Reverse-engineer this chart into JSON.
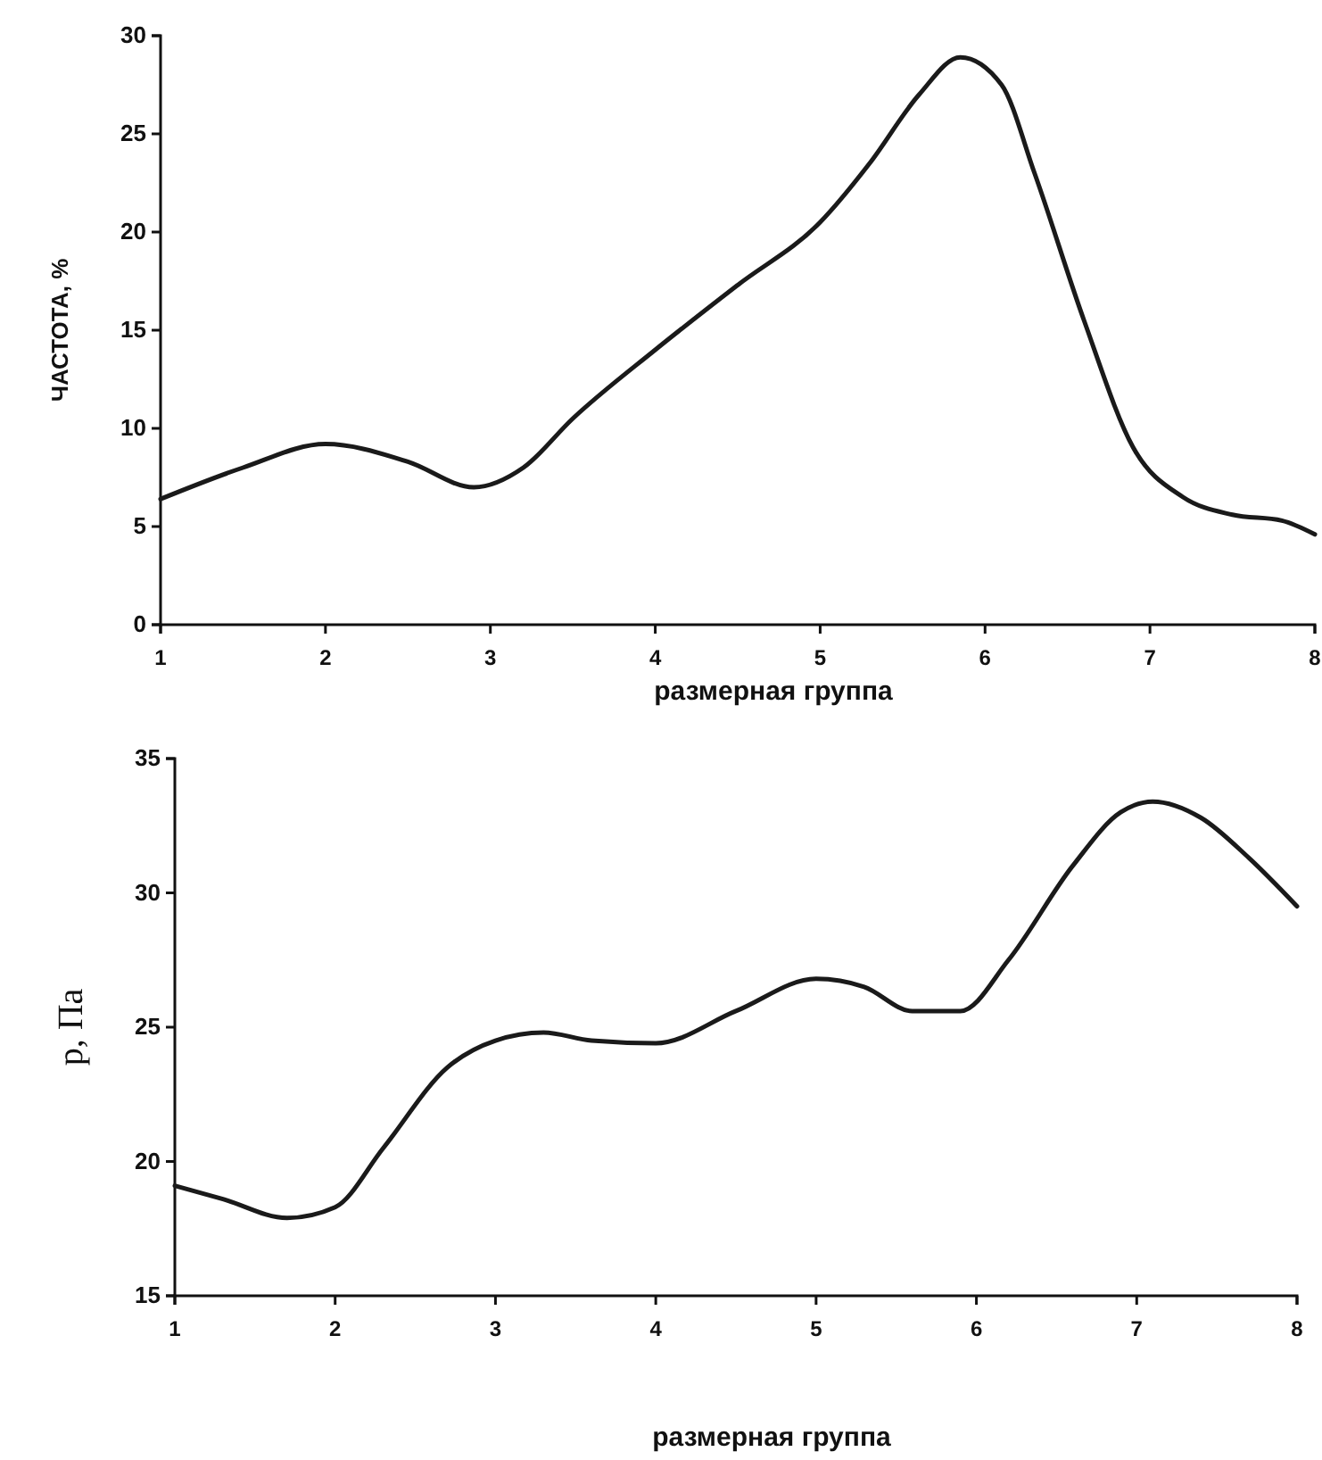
{
  "chart_data": [
    {
      "type": "line",
      "xlabel": "размерная группа",
      "ylabel": "ЧАСТОТА, %",
      "xlim": [
        1,
        8
      ],
      "xticks": [
        1,
        2,
        3,
        4,
        5,
        6,
        7,
        8
      ],
      "ylim": [
        0,
        30
      ],
      "yticks": [
        0,
        5,
        10,
        15,
        20,
        25,
        30
      ],
      "series": [
        {
          "color": "#1a1a1a",
          "x": [
            1,
            1.5,
            2,
            2.5,
            2.9,
            3.2,
            3.5,
            4,
            4.5,
            5,
            5.3,
            5.6,
            5.85,
            6.1,
            6.3,
            6.6,
            6.9,
            7.2,
            7.5,
            7.8,
            8
          ],
          "values": [
            6.4,
            8,
            9.2,
            8.3,
            7,
            8,
            10.5,
            14,
            17.3,
            20.5,
            23.5,
            27,
            28.9,
            27.5,
            23,
            15.5,
            9,
            6.5,
            5.6,
            5.3,
            4.6
          ]
        }
      ]
    },
    {
      "type": "line",
      "xlabel": "размерная группа",
      "ylabel": "p, Па",
      "xlim": [
        1,
        8
      ],
      "xticks": [
        1,
        2,
        3,
        4,
        5,
        6,
        7,
        8
      ],
      "ylim": [
        15,
        35
      ],
      "yticks": [
        15,
        20,
        25,
        30,
        35
      ],
      "series": [
        {
          "color": "#1a1a1a",
          "x": [
            1,
            1.3,
            1.7,
            2,
            2.3,
            2.7,
            3,
            3.3,
            3.6,
            4,
            4.5,
            5,
            5.3,
            5.6,
            5.9,
            6.2,
            6.6,
            6.9,
            7.1,
            7.4,
            7.7,
            8
          ],
          "values": [
            19.1,
            18.6,
            17.9,
            18.3,
            20.5,
            23.5,
            24.5,
            24.8,
            24.5,
            24.4,
            25.6,
            26.8,
            26.5,
            25.6,
            25.6,
            27.5,
            31,
            33,
            33.4,
            32.8,
            31.3,
            29.5
          ]
        }
      ]
    }
  ]
}
